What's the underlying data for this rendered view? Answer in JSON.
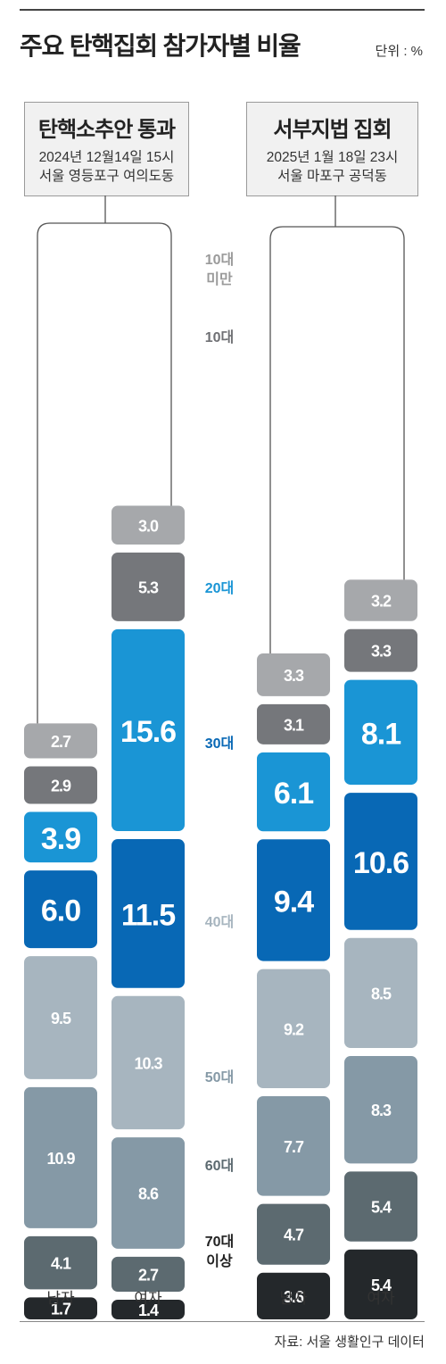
{
  "title": "주요 탄핵집회 참가자별 비율",
  "unit": "단위 : %",
  "source": "자료: 서울 생활인구 데이터",
  "colors": {
    "10대 미만": "#a6a8ab",
    "10대": "#75777b",
    "20대": "#1a95d5",
    "30대": "#0868b5",
    "40대": "#a7b5bf",
    "50대": "#8599a6",
    "60대": "#5c6a70",
    "70대 이상": "#24282b"
  },
  "age_label_colors": {
    "10대 미만": "#9a9a9a",
    "10대": "#6f7074",
    "20대": "#1a95d5",
    "30대": "#0868b5",
    "40대": "#a7b5bf",
    "50대": "#8599a6",
    "60대": "#5c6a70",
    "70대 이상": "#222222"
  },
  "chart_data": [
    {
      "type": "bar",
      "title": "탄핵소추안 통과",
      "date": "2024년 12월14일 15시",
      "place": "서울 영등포구 여의도동",
      "categories": [
        "10대 미만",
        "10대",
        "20대",
        "30대",
        "40대",
        "50대",
        "60대",
        "70대 이상"
      ],
      "series": [
        {
          "name": "남자",
          "values": [
            2.7,
            2.9,
            3.9,
            6.0,
            9.5,
            10.9,
            4.1,
            1.7
          ]
        },
        {
          "name": "여자",
          "values": [
            3.0,
            5.3,
            15.6,
            11.5,
            10.3,
            8.6,
            2.7,
            1.4
          ]
        }
      ]
    },
    {
      "type": "bar",
      "title": "서부지법 집회",
      "date": "2025년 1월 18일 23시",
      "place": "서울 마포구 공덕동",
      "categories": [
        "10대 미만",
        "10대",
        "20대",
        "30대",
        "40대",
        "50대",
        "60대",
        "70대 이상"
      ],
      "series": [
        {
          "name": "남자",
          "values": [
            3.3,
            3.1,
            6.1,
            9.4,
            9.2,
            7.7,
            4.7,
            3.6
          ]
        },
        {
          "name": "여자",
          "values": [
            3.2,
            3.3,
            8.1,
            10.6,
            8.5,
            8.3,
            5.4,
            5.4
          ]
        }
      ]
    }
  ]
}
